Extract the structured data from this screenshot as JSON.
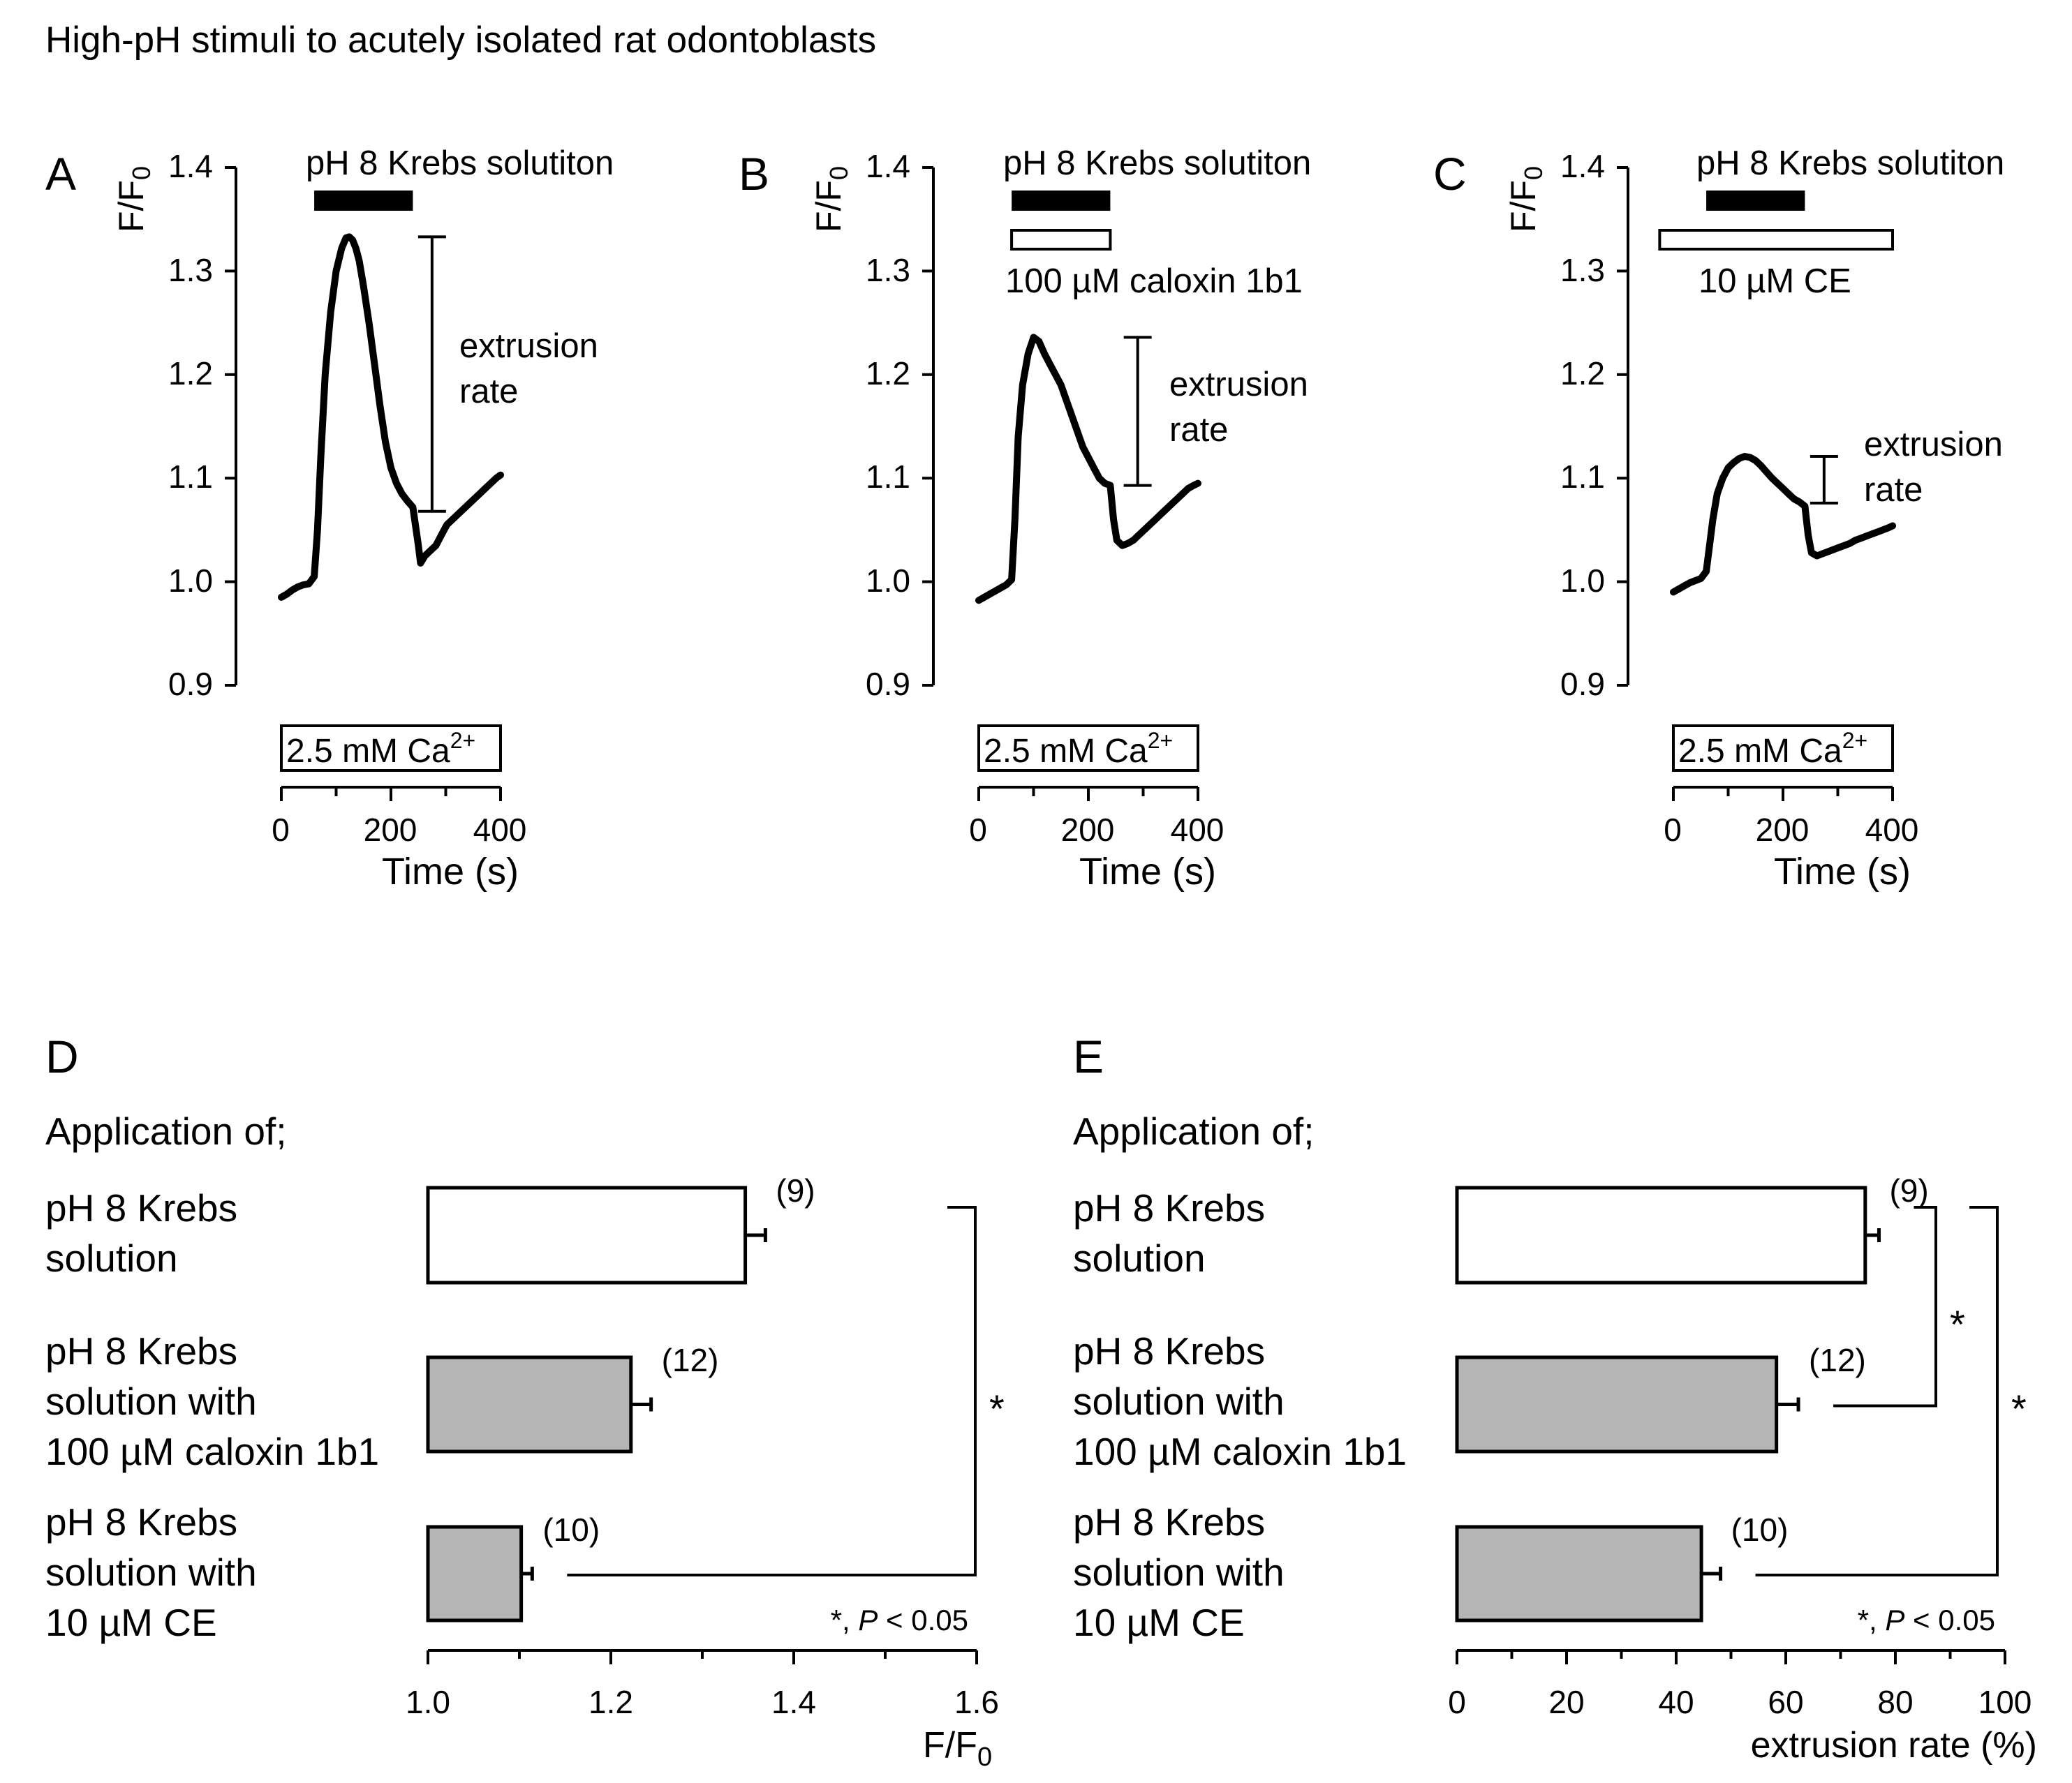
{
  "figure_title": "High-pH stimuli to acutely isolated rat odontoblasts",
  "chart_data": [
    {
      "panel": "A",
      "type": "line",
      "ylabel_main": "F/F",
      "ylabel_sub": "0",
      "yticks": [
        "0.9",
        "1.0",
        "1.1",
        "1.2",
        "1.3",
        "1.4"
      ],
      "ylim": [
        0.9,
        1.4
      ],
      "xlim": [
        0,
        400
      ],
      "xticks": [
        "0",
        "200",
        "400"
      ],
      "xlabel": "Time (s)",
      "stim_label": "pH 8 Krebs solutiton",
      "stim_range": [
        60,
        240
      ],
      "ca_label_main": "2.5 mM Ca",
      "ca_label_sup": "2+",
      "bracket_label": [
        "extrusion",
        "rate"
      ],
      "bracket_x": 275,
      "bracket_range": [
        1.068,
        1.333
      ],
      "trace": {
        "x": [
          0,
          10,
          20,
          30,
          40,
          50,
          60,
          66,
          72,
          80,
          90,
          100,
          110,
          118,
          124,
          130,
          136,
          142,
          150,
          160,
          170,
          180,
          190,
          200,
          210,
          220,
          230,
          240,
          250,
          254,
          262,
          272,
          282,
          292,
          302,
          312,
          322,
          332,
          342,
          352,
          362,
          372,
          382,
          392,
          400
        ],
        "y": [
          0.985,
          0.988,
          0.992,
          0.995,
          0.997,
          0.998,
          1.005,
          1.05,
          1.12,
          1.2,
          1.26,
          1.3,
          1.322,
          1.332,
          1.333,
          1.33,
          1.322,
          1.31,
          1.285,
          1.25,
          1.21,
          1.17,
          1.135,
          1.11,
          1.095,
          1.085,
          1.078,
          1.072,
          1.035,
          1.018,
          1.025,
          1.03,
          1.035,
          1.045,
          1.055,
          1.06,
          1.065,
          1.07,
          1.075,
          1.08,
          1.085,
          1.09,
          1.095,
          1.1,
          1.103
        ]
      }
    },
    {
      "panel": "B",
      "type": "line",
      "ylabel_main": "F/F",
      "ylabel_sub": "0",
      "yticks": [
        "0.9",
        "1.0",
        "1.1",
        "1.2",
        "1.3",
        "1.4"
      ],
      "ylim": [
        0.9,
        1.4
      ],
      "xlim": [
        0,
        400
      ],
      "xticks": [
        "0",
        "200",
        "400"
      ],
      "xlabel": "Time (s)",
      "stim_label": "pH 8 Krebs solutiton",
      "stim_range": [
        60,
        240
      ],
      "drug_label": "100 µM caloxin 1b1",
      "drug_range": [
        60,
        240
      ],
      "ca_label_main": "2.5 mM Ca",
      "ca_label_sup": "2+",
      "bracket_label": [
        "extrusion",
        "rate"
      ],
      "bracket_x": 290,
      "bracket_range": [
        1.093,
        1.236
      ],
      "trace": {
        "x": [
          0,
          10,
          20,
          30,
          40,
          50,
          60,
          66,
          72,
          80,
          90,
          100,
          110,
          120,
          130,
          140,
          150,
          160,
          170,
          180,
          190,
          200,
          210,
          220,
          230,
          240,
          246,
          252,
          262,
          272,
          282,
          292,
          302,
          312,
          322,
          332,
          342,
          352,
          362,
          372,
          382,
          392,
          400
        ],
        "y": [
          0.982,
          0.985,
          0.988,
          0.991,
          0.994,
          0.997,
          1.002,
          1.06,
          1.14,
          1.19,
          1.22,
          1.236,
          1.232,
          1.22,
          1.21,
          1.2,
          1.19,
          1.175,
          1.16,
          1.145,
          1.13,
          1.12,
          1.11,
          1.1,
          1.095,
          1.093,
          1.06,
          1.04,
          1.035,
          1.037,
          1.04,
          1.045,
          1.05,
          1.055,
          1.06,
          1.065,
          1.07,
          1.075,
          1.08,
          1.085,
          1.09,
          1.093,
          1.095
        ]
      }
    },
    {
      "panel": "C",
      "type": "line",
      "ylabel_main": "F/F",
      "ylabel_sub": "0",
      "yticks": [
        "0.9",
        "1.0",
        "1.1",
        "1.2",
        "1.3",
        "1.4"
      ],
      "ylim": [
        0.9,
        1.4
      ],
      "xlim": [
        0,
        400
      ],
      "xticks": [
        "0",
        "200",
        "400"
      ],
      "xlabel": "Time (s)",
      "stim_label": "pH 8 Krebs solutiton",
      "stim_range": [
        60,
        240
      ],
      "drug_label": "10 µM CE",
      "drug_range": [
        -25,
        400
      ],
      "ca_label_main": "2.5 mM Ca",
      "ca_label_sup": "2+",
      "bracket_label": [
        "extrusion",
        "rate"
      ],
      "bracket_x": 275,
      "bracket_range": [
        1.076,
        1.121
      ],
      "trace": {
        "x": [
          0,
          10,
          20,
          30,
          40,
          50,
          60,
          66,
          72,
          80,
          90,
          100,
          110,
          120,
          130,
          140,
          150,
          160,
          170,
          180,
          190,
          200,
          210,
          220,
          230,
          240,
          246,
          252,
          262,
          272,
          282,
          292,
          302,
          312,
          322,
          332,
          342,
          352,
          362,
          372,
          382,
          392,
          400
        ],
        "y": [
          0.99,
          0.993,
          0.996,
          0.999,
          1.001,
          1.003,
          1.01,
          1.035,
          1.06,
          1.085,
          1.1,
          1.11,
          1.115,
          1.119,
          1.121,
          1.12,
          1.117,
          1.112,
          1.106,
          1.1,
          1.095,
          1.09,
          1.085,
          1.08,
          1.077,
          1.073,
          1.045,
          1.028,
          1.025,
          1.027,
          1.029,
          1.031,
          1.033,
          1.035,
          1.037,
          1.04,
          1.042,
          1.044,
          1.046,
          1.048,
          1.05,
          1.052,
          1.054
        ]
      }
    },
    {
      "panel": "D",
      "type": "bar",
      "header": "Application of;",
      "categories": [
        [
          "pH 8 Krebs",
          "solution"
        ],
        [
          "pH 8 Krebs",
          "solution with",
          "100 µM caloxin 1b1"
        ],
        [
          "pH 8 Krebs",
          "solution with",
          "10 µM CE"
        ]
      ],
      "values": [
        1.347,
        1.222,
        1.102
      ],
      "errors": [
        0.022,
        0.022,
        0.012
      ],
      "n_labels": [
        "(9)",
        "(12)",
        "(10)"
      ],
      "colors": [
        "#ffffff",
        "#b5b5b5",
        "#b5b5b5"
      ],
      "xlim": [
        1.0,
        1.6
      ],
      "xticks": [
        "1.0",
        "1.2",
        "1.4",
        "1.6"
      ],
      "xlabel_main": "F/F",
      "xlabel_sub": "0",
      "significance": [
        {
          "from": 0,
          "to": 2,
          "label": "*"
        }
      ],
      "note_star": "*, ",
      "note_p": "P",
      "note_rest": " < 0.05"
    },
    {
      "panel": "E",
      "type": "bar",
      "header": "Application of;",
      "categories": [
        [
          "pH 8 Krebs",
          "solution"
        ],
        [
          "pH 8 Krebs",
          "solution with",
          "100 µM caloxin 1b1"
        ],
        [
          "pH 8 Krebs",
          "solution with",
          "10 µM CE"
        ]
      ],
      "values": [
        74.5,
        58.3,
        44.6
      ],
      "errors": [
        2.5,
        4.0,
        3.5
      ],
      "n_labels": [
        "(9)",
        "(12)",
        "(10)"
      ],
      "colors": [
        "#ffffff",
        "#b5b5b5",
        "#b5b5b5"
      ],
      "xlim": [
        0,
        100
      ],
      "xticks": [
        "0",
        "20",
        "40",
        "60",
        "80",
        "100"
      ],
      "xlabel_main": "extrusion rate (%)",
      "significance": [
        {
          "from": 0,
          "to": 1,
          "label": "*"
        },
        {
          "from": 0,
          "to": 2,
          "label": "*"
        }
      ],
      "note_star": "*, ",
      "note_p": "P",
      "note_rest": " < 0.05"
    }
  ]
}
